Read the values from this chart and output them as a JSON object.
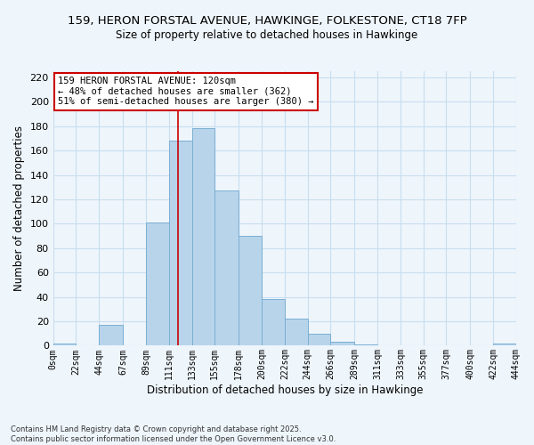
{
  "title_line1": "159, HERON FORSTAL AVENUE, HAWKINGE, FOLKESTONE, CT18 7FP",
  "title_line2": "Size of property relative to detached houses in Hawkinge",
  "xlabel": "Distribution of detached houses by size in Hawkinge",
  "ylabel": "Number of detached properties",
  "bin_edges": [
    0,
    22,
    44,
    67,
    89,
    111,
    133,
    155,
    178,
    200,
    222,
    244,
    266,
    289,
    311,
    333,
    355,
    377,
    400,
    422,
    444
  ],
  "bar_heights": [
    2,
    0,
    17,
    0,
    101,
    168,
    178,
    127,
    90,
    38,
    22,
    10,
    3,
    1,
    0,
    0,
    0,
    0,
    0,
    2
  ],
  "bar_color": "#b8d4ea",
  "bar_edge_color": "#7aafd4",
  "grid_color": "#c8dff0",
  "vline_x": 120,
  "vline_color": "#cc0000",
  "annotation_title": "159 HERON FORSTAL AVENUE: 120sqm",
  "annotation_line1": "← 48% of detached houses are smaller (362)",
  "annotation_line2": "51% of semi-detached houses are larger (380) →",
  "annotation_box_color": "white",
  "annotation_box_edge_color": "#cc0000",
  "ylim": [
    0,
    225
  ],
  "yticks": [
    0,
    20,
    40,
    60,
    80,
    100,
    120,
    140,
    160,
    180,
    200,
    220
  ],
  "tick_labels": [
    "0sqm",
    "22sqm",
    "44sqm",
    "67sqm",
    "89sqm",
    "111sqm",
    "133sqm",
    "155sqm",
    "178sqm",
    "200sqm",
    "222sqm",
    "244sqm",
    "266sqm",
    "289sqm",
    "311sqm",
    "333sqm",
    "355sqm",
    "377sqm",
    "400sqm",
    "422sqm",
    "444sqm"
  ],
  "footnote1": "Contains HM Land Registry data © Crown copyright and database right 2025.",
  "footnote2": "Contains public sector information licensed under the Open Government Licence v3.0.",
  "bg_color": "#eef5fb"
}
